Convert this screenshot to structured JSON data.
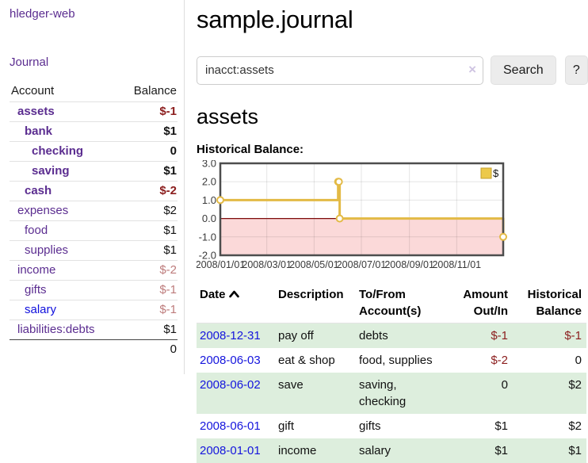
{
  "colors": {
    "accent_purple": "#5b2d90",
    "link_blue": "#1515dd",
    "negative_strong": "#8b1d1d",
    "negative_soft": "#bd7b7b",
    "row_green": "#ddeedd",
    "chart_gold": "#e3ba45",
    "chart_negative_fill": "#fbd9d9",
    "chart_zero_line": "#7d0b0b"
  },
  "sidebar": {
    "brand": "hledger-web",
    "nav": [
      {
        "label": "Journal"
      }
    ],
    "accounts_table": {
      "headers": {
        "account": "Account",
        "balance": "Balance"
      },
      "rows": [
        {
          "name": "assets",
          "depth": 1,
          "balance": "$-1",
          "in_query": true,
          "negative": true,
          "link_color": "purple"
        },
        {
          "name": "bank",
          "depth": 2,
          "balance": "$1",
          "in_query": true,
          "negative": false,
          "link_color": "purple"
        },
        {
          "name": "checking",
          "depth": 3,
          "balance": "0",
          "in_query": true,
          "negative": false,
          "link_color": "purple"
        },
        {
          "name": "saving",
          "depth": 3,
          "balance": "$1",
          "in_query": true,
          "negative": false,
          "link_color": "purple"
        },
        {
          "name": "cash",
          "depth": 2,
          "balance": "$-2",
          "in_query": true,
          "negative": true,
          "link_color": "purple"
        },
        {
          "name": "expenses",
          "depth": 1,
          "balance": "$2",
          "in_query": false,
          "negative": false,
          "link_color": "purple"
        },
        {
          "name": "food",
          "depth": 2,
          "balance": "$1",
          "in_query": false,
          "negative": false,
          "link_color": "purple"
        },
        {
          "name": "supplies",
          "depth": 2,
          "balance": "$1",
          "in_query": false,
          "negative": false,
          "link_color": "purple"
        },
        {
          "name": "income",
          "depth": 1,
          "balance": "$-2",
          "in_query": false,
          "negative": true,
          "link_color": "purple"
        },
        {
          "name": "gifts",
          "depth": 2,
          "balance": "$-1",
          "in_query": false,
          "negative": true,
          "link_color": "purple"
        },
        {
          "name": "salary",
          "depth": 2,
          "balance": "$-1",
          "in_query": false,
          "negative": true,
          "link_color": "blue"
        },
        {
          "name": "liabilities:debts",
          "depth": 1,
          "balance": "$1",
          "in_query": false,
          "negative": false,
          "link_color": "purple"
        }
      ],
      "total": "0"
    }
  },
  "main": {
    "title": "sample.journal",
    "search": {
      "value": "inacct:assets",
      "clear_icon": "×",
      "search_button": "Search",
      "help_button": "?"
    },
    "account_heading": "assets",
    "chart_title": "Historical Balance:"
  },
  "chart_data": {
    "type": "line",
    "step": true,
    "title": "Historical Balance",
    "series": [
      {
        "name": "$",
        "color": "#e3ba45",
        "points": [
          [
            "2008-01-01",
            1
          ],
          [
            "2008-06-01",
            2
          ],
          [
            "2008-06-02",
            2
          ],
          [
            "2008-06-03",
            0
          ],
          [
            "2008-12-31",
            -1
          ]
        ]
      }
    ],
    "xlim": [
      "2008-01-01",
      "2008-12-31"
    ],
    "ylim": [
      -2,
      3
    ],
    "x_tick_dates": [
      "2008-01-01",
      "2008-03-01",
      "2008-05-01",
      "2008-07-01",
      "2008-09-01",
      "2008-11-01"
    ],
    "x_tick_labels": [
      "2008/01/01",
      "2008/03/01",
      "2008/05/01",
      "2008/07/01",
      "2008/09/01",
      "2008/11/01"
    ],
    "y_ticks": [
      "3.0",
      "2.0",
      "1.0",
      "0.0",
      "-1.0",
      "-2.0"
    ],
    "grid": true,
    "legend": {
      "label": "$",
      "position": "top-right"
    },
    "negative_region_shaded": true
  },
  "register": {
    "headers": {
      "date": "Date",
      "description": "Description",
      "accounts": "To/From Account(s)",
      "amount": "Amount Out/In",
      "balance": "Historical Balance"
    },
    "sort_icon": "chevron-up",
    "rows": [
      {
        "date": "2008-12-31",
        "description": "pay off",
        "accounts": "debts",
        "amount": "$-1",
        "balance": "$-1",
        "shaded": true
      },
      {
        "date": "2008-06-03",
        "description": "eat & shop",
        "accounts": "food, supplies",
        "amount": "$-2",
        "balance": "0",
        "shaded": false
      },
      {
        "date": "2008-06-02",
        "description": "save",
        "accounts": "saving, checking",
        "amount": "0",
        "balance": "$2",
        "shaded": true
      },
      {
        "date": "2008-06-01",
        "description": "gift",
        "accounts": "gifts",
        "amount": "$1",
        "balance": "$2",
        "shaded": false
      },
      {
        "date": "2008-01-01",
        "description": "income",
        "accounts": "salary",
        "amount": "$1",
        "balance": "$1",
        "shaded": true
      }
    ]
  }
}
